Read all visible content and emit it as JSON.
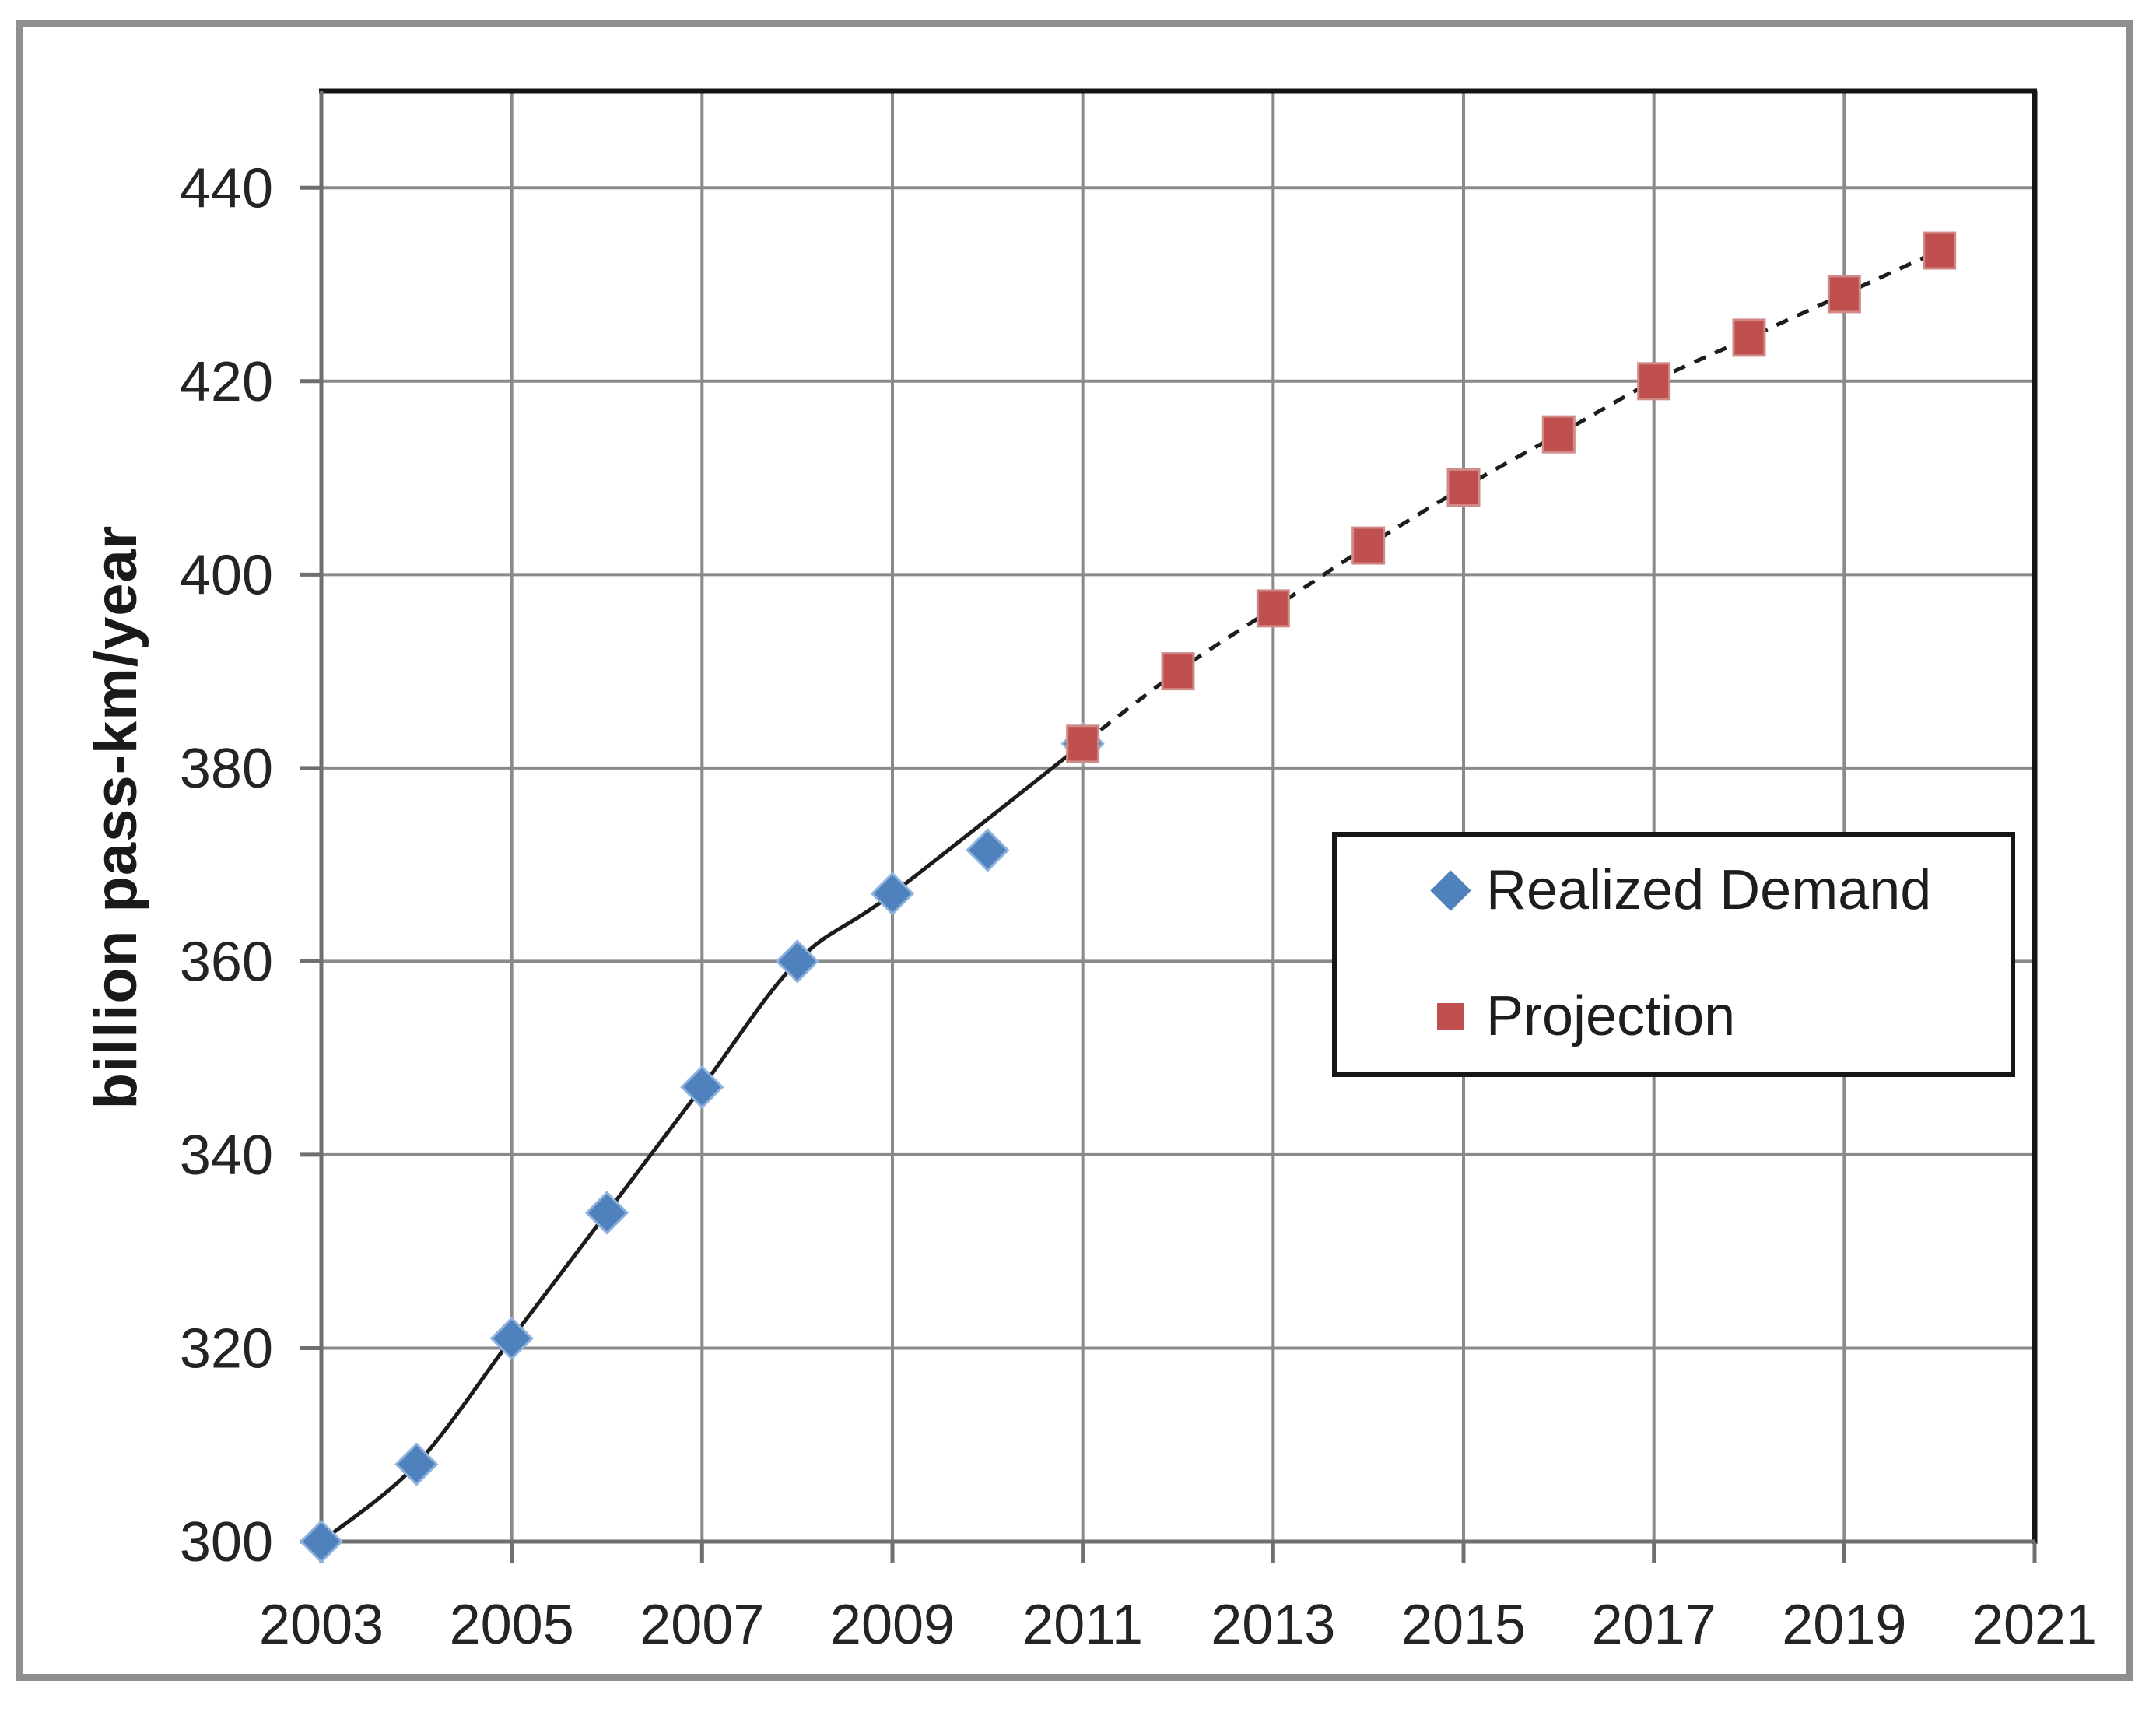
{
  "chart_data": {
    "type": "scatter",
    "title": "",
    "xlabel": "",
    "ylabel": "billion pass-km/year",
    "xlim": [
      2003,
      2021
    ],
    "ylim": [
      300,
      450
    ],
    "grid": true,
    "legend_position": "inside-middle-right",
    "x_gridline_values": [
      2003,
      2005,
      2007,
      2009,
      2011,
      2013,
      2015,
      2017,
      2019,
      2021
    ],
    "y_gridline_values": [
      300,
      320,
      340,
      360,
      380,
      400,
      420,
      440
    ],
    "x_tick_labels": [
      "2003",
      "2005",
      "2007",
      "2009",
      "2011",
      "2013",
      "2015",
      "2017",
      "2019",
      "2021"
    ],
    "y_tick_labels": [
      "300",
      "320",
      "340",
      "360",
      "380",
      "400",
      "420",
      "440"
    ],
    "line_color": "#1c1c1c",
    "series": [
      {
        "name": "Realized Demand",
        "marker": "diamond",
        "color": "#4F81BD",
        "marker_edge_color": "#8fb2dc",
        "line_style": "solid",
        "x": [
          2003,
          2004,
          2005,
          2006,
          2007,
          2008,
          2009,
          2010,
          2011
        ],
        "y": [
          300,
          308,
          321,
          334,
          347,
          360,
          367,
          371.5,
          382.5
        ],
        "line_through_x": [
          2003,
          2004,
          2005,
          2006,
          2007,
          2008,
          2009,
          2011
        ]
      },
      {
        "name": "Projection",
        "marker": "square",
        "color": "#C0504D",
        "marker_edge_color": "#d08a87",
        "line_style": "dashed",
        "x": [
          2011,
          2012,
          2013,
          2014,
          2015,
          2016,
          2017,
          2018,
          2019,
          2020
        ],
        "y": [
          382.5,
          390,
          396.5,
          403,
          409,
          414.5,
          420,
          424.5,
          429,
          433.5
        ],
        "line_through_x": [
          2011,
          2012,
          2013,
          2014,
          2015,
          2016,
          2017,
          2018,
          2019,
          2020
        ]
      }
    ]
  }
}
